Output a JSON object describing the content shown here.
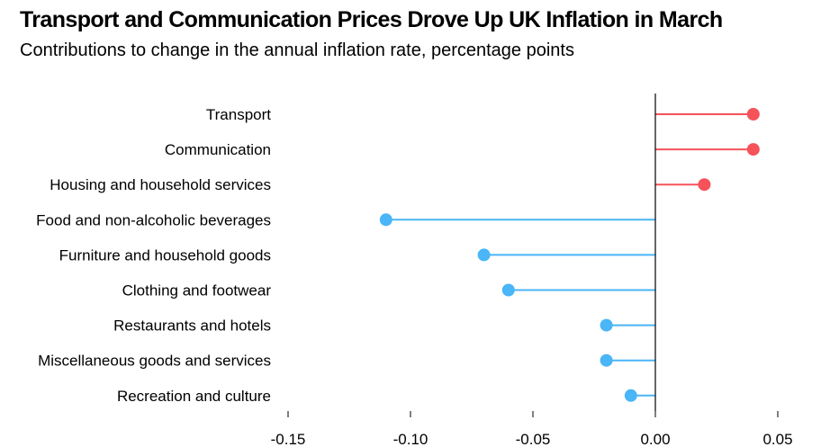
{
  "title": "Transport and Communication Prices Drove Up UK Inflation in March",
  "subtitle": "Contributions to change in the annual inflation rate, percentage points",
  "colors": {
    "positive": "#f5525a",
    "negative": "#4ab5f7",
    "axis": "#000000"
  },
  "chart_data": {
    "type": "lollipop",
    "title": "Transport and Communication Prices Drove Up UK Inflation in March",
    "subtitle": "Contributions to change in the annual inflation rate, percentage points",
    "categories": [
      "Transport",
      "Communication",
      "Housing and household services",
      "Food and non-alcoholic beverages",
      "Furniture and household goods",
      "Clothing and footwear",
      "Restaurants and hotels",
      "Miscellaneous goods and services",
      "Recreation and culture"
    ],
    "values": [
      0.04,
      0.04,
      0.02,
      -0.11,
      -0.07,
      -0.06,
      -0.02,
      -0.02,
      -0.01
    ],
    "xlim": [
      -0.15,
      0.05
    ],
    "xticks": [
      -0.15,
      -0.1,
      -0.05,
      0.0,
      0.05
    ],
    "xtick_labels": [
      "-0.15",
      "-0.10",
      "-0.05",
      "0.00",
      "0.05"
    ],
    "grid": false,
    "legend": "none"
  }
}
